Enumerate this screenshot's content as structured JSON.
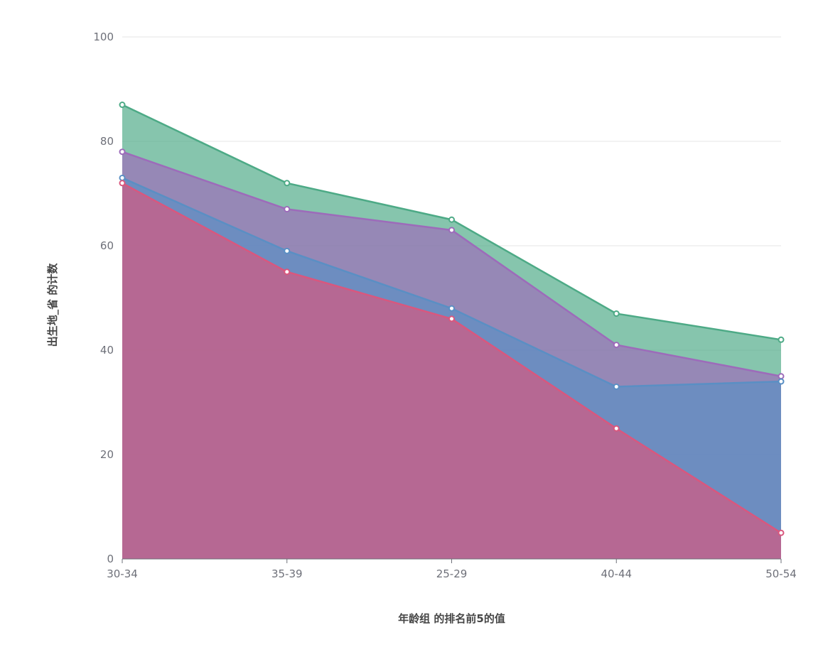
{
  "chart_data": {
    "type": "area",
    "xlabel": "年龄组 的排名前5的值",
    "ylabel": "出生地_省 的计数",
    "categories": [
      "30-34",
      "35-39",
      "25-29",
      "40-44",
      "50-54"
    ],
    "ylim": [
      0,
      100
    ],
    "yticks": [
      0,
      20,
      40,
      60,
      80,
      100
    ],
    "grid": true,
    "legend": "none",
    "series": [
      {
        "color": "#4daa86",
        "values": [
          87,
          72,
          65,
          47,
          42
        ]
      },
      {
        "color": "#9d6bba",
        "values": [
          78,
          67,
          63,
          41,
          35
        ]
      },
      {
        "color": "#5a8fc4",
        "values": [
          73,
          59,
          48,
          33,
          34
        ]
      },
      {
        "color": "#d9577e",
        "values": [
          72,
          55,
          46,
          25,
          5
        ]
      }
    ]
  }
}
